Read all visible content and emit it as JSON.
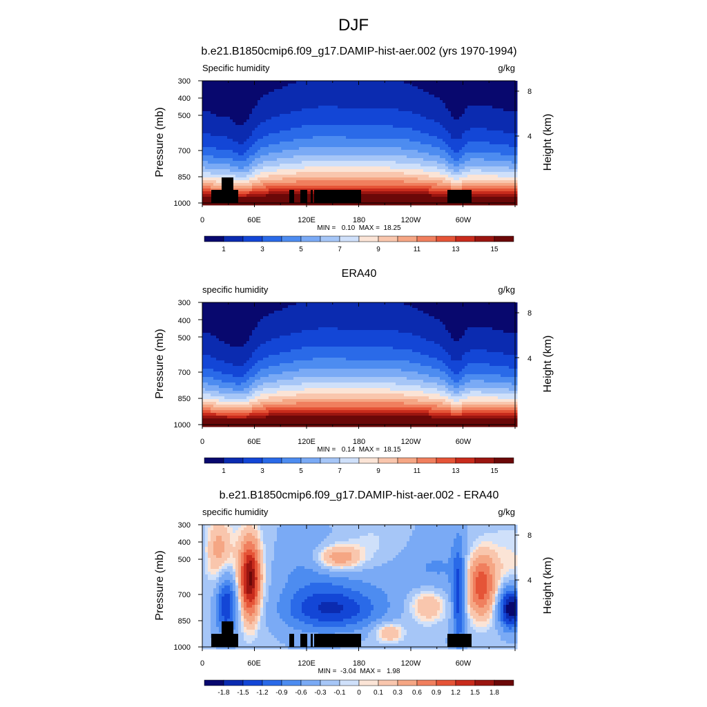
{
  "page": {
    "title": "DJF"
  },
  "colors": {
    "abs_scale": [
      "#08086e",
      "#0b2bb0",
      "#1346d6",
      "#2a6ae8",
      "#4d8cf0",
      "#7aaaf5",
      "#a6c6f7",
      "#cfe0fa",
      "#fbe4d6",
      "#f9c6ad",
      "#f5a684",
      "#f07f5e",
      "#e55437",
      "#c82b1c",
      "#9a1510",
      "#6b0808"
    ],
    "diff_scale": [
      "#08086e",
      "#0b2bb0",
      "#1346d6",
      "#2a6ae8",
      "#4d8cf0",
      "#7aaaf5",
      "#a6c6f7",
      "#cfe0fa",
      "#fbe4d6",
      "#f9c6ad",
      "#f5a684",
      "#f07f5e",
      "#e55437",
      "#c82b1c",
      "#9a1510",
      "#6b0808"
    ],
    "terrain": "#000000"
  },
  "chart_data": [
    {
      "type": "heatmap",
      "title": "b.e21.B1850cmip6.f09_g17.DAMIP-hist-aer.002 (yrs 1970-1994)",
      "left_label": "Specific humidity",
      "right_label": "g/kg",
      "ylabel": "Pressure (mb)",
      "ylabel_right": "Height (km)",
      "y_ticks": [
        "300",
        "400",
        "500",
        "700",
        "850",
        "1000"
      ],
      "y_right_ticks": [
        "8",
        "4"
      ],
      "x_ticks": [
        "0",
        "60E",
        "120E",
        "180",
        "120W",
        "60W"
      ],
      "stats": "MIN =   0.10  MAX =  18.25",
      "colorbar_labels": [
        "1",
        "3",
        "5",
        "7",
        "9",
        "11",
        "13",
        "15"
      ],
      "z_range": [
        0.1,
        18.25
      ],
      "units": "g/kg"
    },
    {
      "type": "heatmap",
      "title": "ERA40",
      "left_label": "specific humidity",
      "right_label": "g/kg",
      "ylabel": "Pressure (mb)",
      "ylabel_right": "Height (km)",
      "y_ticks": [
        "300",
        "400",
        "500",
        "700",
        "850",
        "1000"
      ],
      "y_right_ticks": [
        "8",
        "4"
      ],
      "x_ticks": [
        "0",
        "60E",
        "120E",
        "180",
        "120W",
        "60W"
      ],
      "stats": "MIN =   0.14  MAX =  18.15",
      "colorbar_labels": [
        "1",
        "3",
        "5",
        "7",
        "9",
        "11",
        "13",
        "15"
      ],
      "z_range": [
        0.14,
        18.15
      ],
      "units": "g/kg"
    },
    {
      "type": "heatmap",
      "title": "b.e21.B1850cmip6.f09_g17.DAMIP-hist-aer.002 - ERA40",
      "left_label": "specific humidity",
      "right_label": "g/kg",
      "ylabel": "Pressure (mb)",
      "ylabel_right": "Height (km)",
      "y_ticks": [
        "300",
        "400",
        "500",
        "700",
        "850",
        "1000"
      ],
      "y_right_ticks": [
        "8",
        "4"
      ],
      "x_ticks": [
        "0",
        "60E",
        "120E",
        "180",
        "120W",
        "60W"
      ],
      "stats": "MIN =  -3.04  MAX =   1.98",
      "colorbar_labels": [
        "-1.8",
        "-1.5",
        "-1.2",
        "-0.9",
        "-0.6",
        "-0.3",
        "-0.1",
        "0",
        "0.1",
        "0.3",
        "0.6",
        "0.9",
        "1.2",
        "1.5",
        "1.8"
      ],
      "z_range": [
        -3.04,
        1.98
      ],
      "units": "g/kg"
    }
  ]
}
